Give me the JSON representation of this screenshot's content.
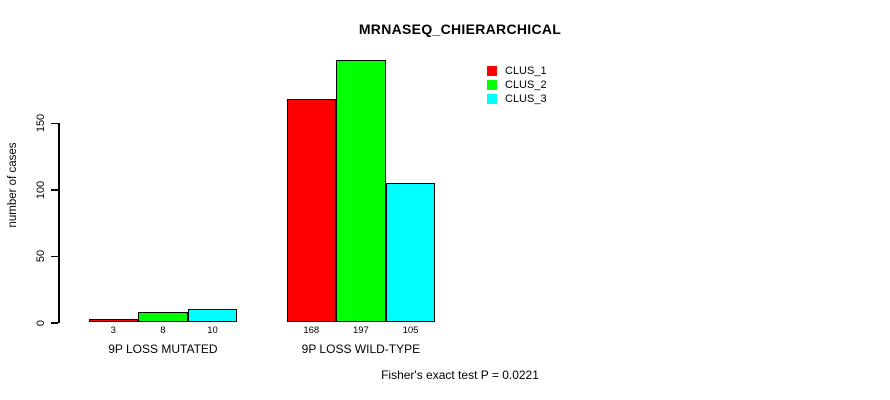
{
  "chart_data": {
    "type": "bar",
    "title": "MRNASEQ_CHIERARCHICAL",
    "xlabel": "",
    "ylabel": "number of cases",
    "categories": [
      "9P LOSS MUTATED",
      "9P LOSS WILD-TYPE"
    ],
    "series": [
      {
        "name": "CLUS_1",
        "color": "#ff0000",
        "values": [
          3,
          168
        ]
      },
      {
        "name": "CLUS_2",
        "color": "#00ff00",
        "values": [
          8,
          197
        ]
      },
      {
        "name": "CLUS_3",
        "color": "#00ffff",
        "values": [
          10,
          105
        ]
      }
    ],
    "bar_value_labels": [
      [
        "3",
        "8",
        "10"
      ],
      [
        "168",
        "197",
        "105"
      ]
    ],
    "yticks": [
      0,
      50,
      100,
      150
    ],
    "ylim": [
      0,
      207
    ],
    "grid": false,
    "legend_position": "top-right",
    "annotation": "Fisher's exact test P = 0.0221"
  },
  "colors": {
    "axis": "#000000",
    "text": "#000000",
    "background": "#ffffff"
  }
}
